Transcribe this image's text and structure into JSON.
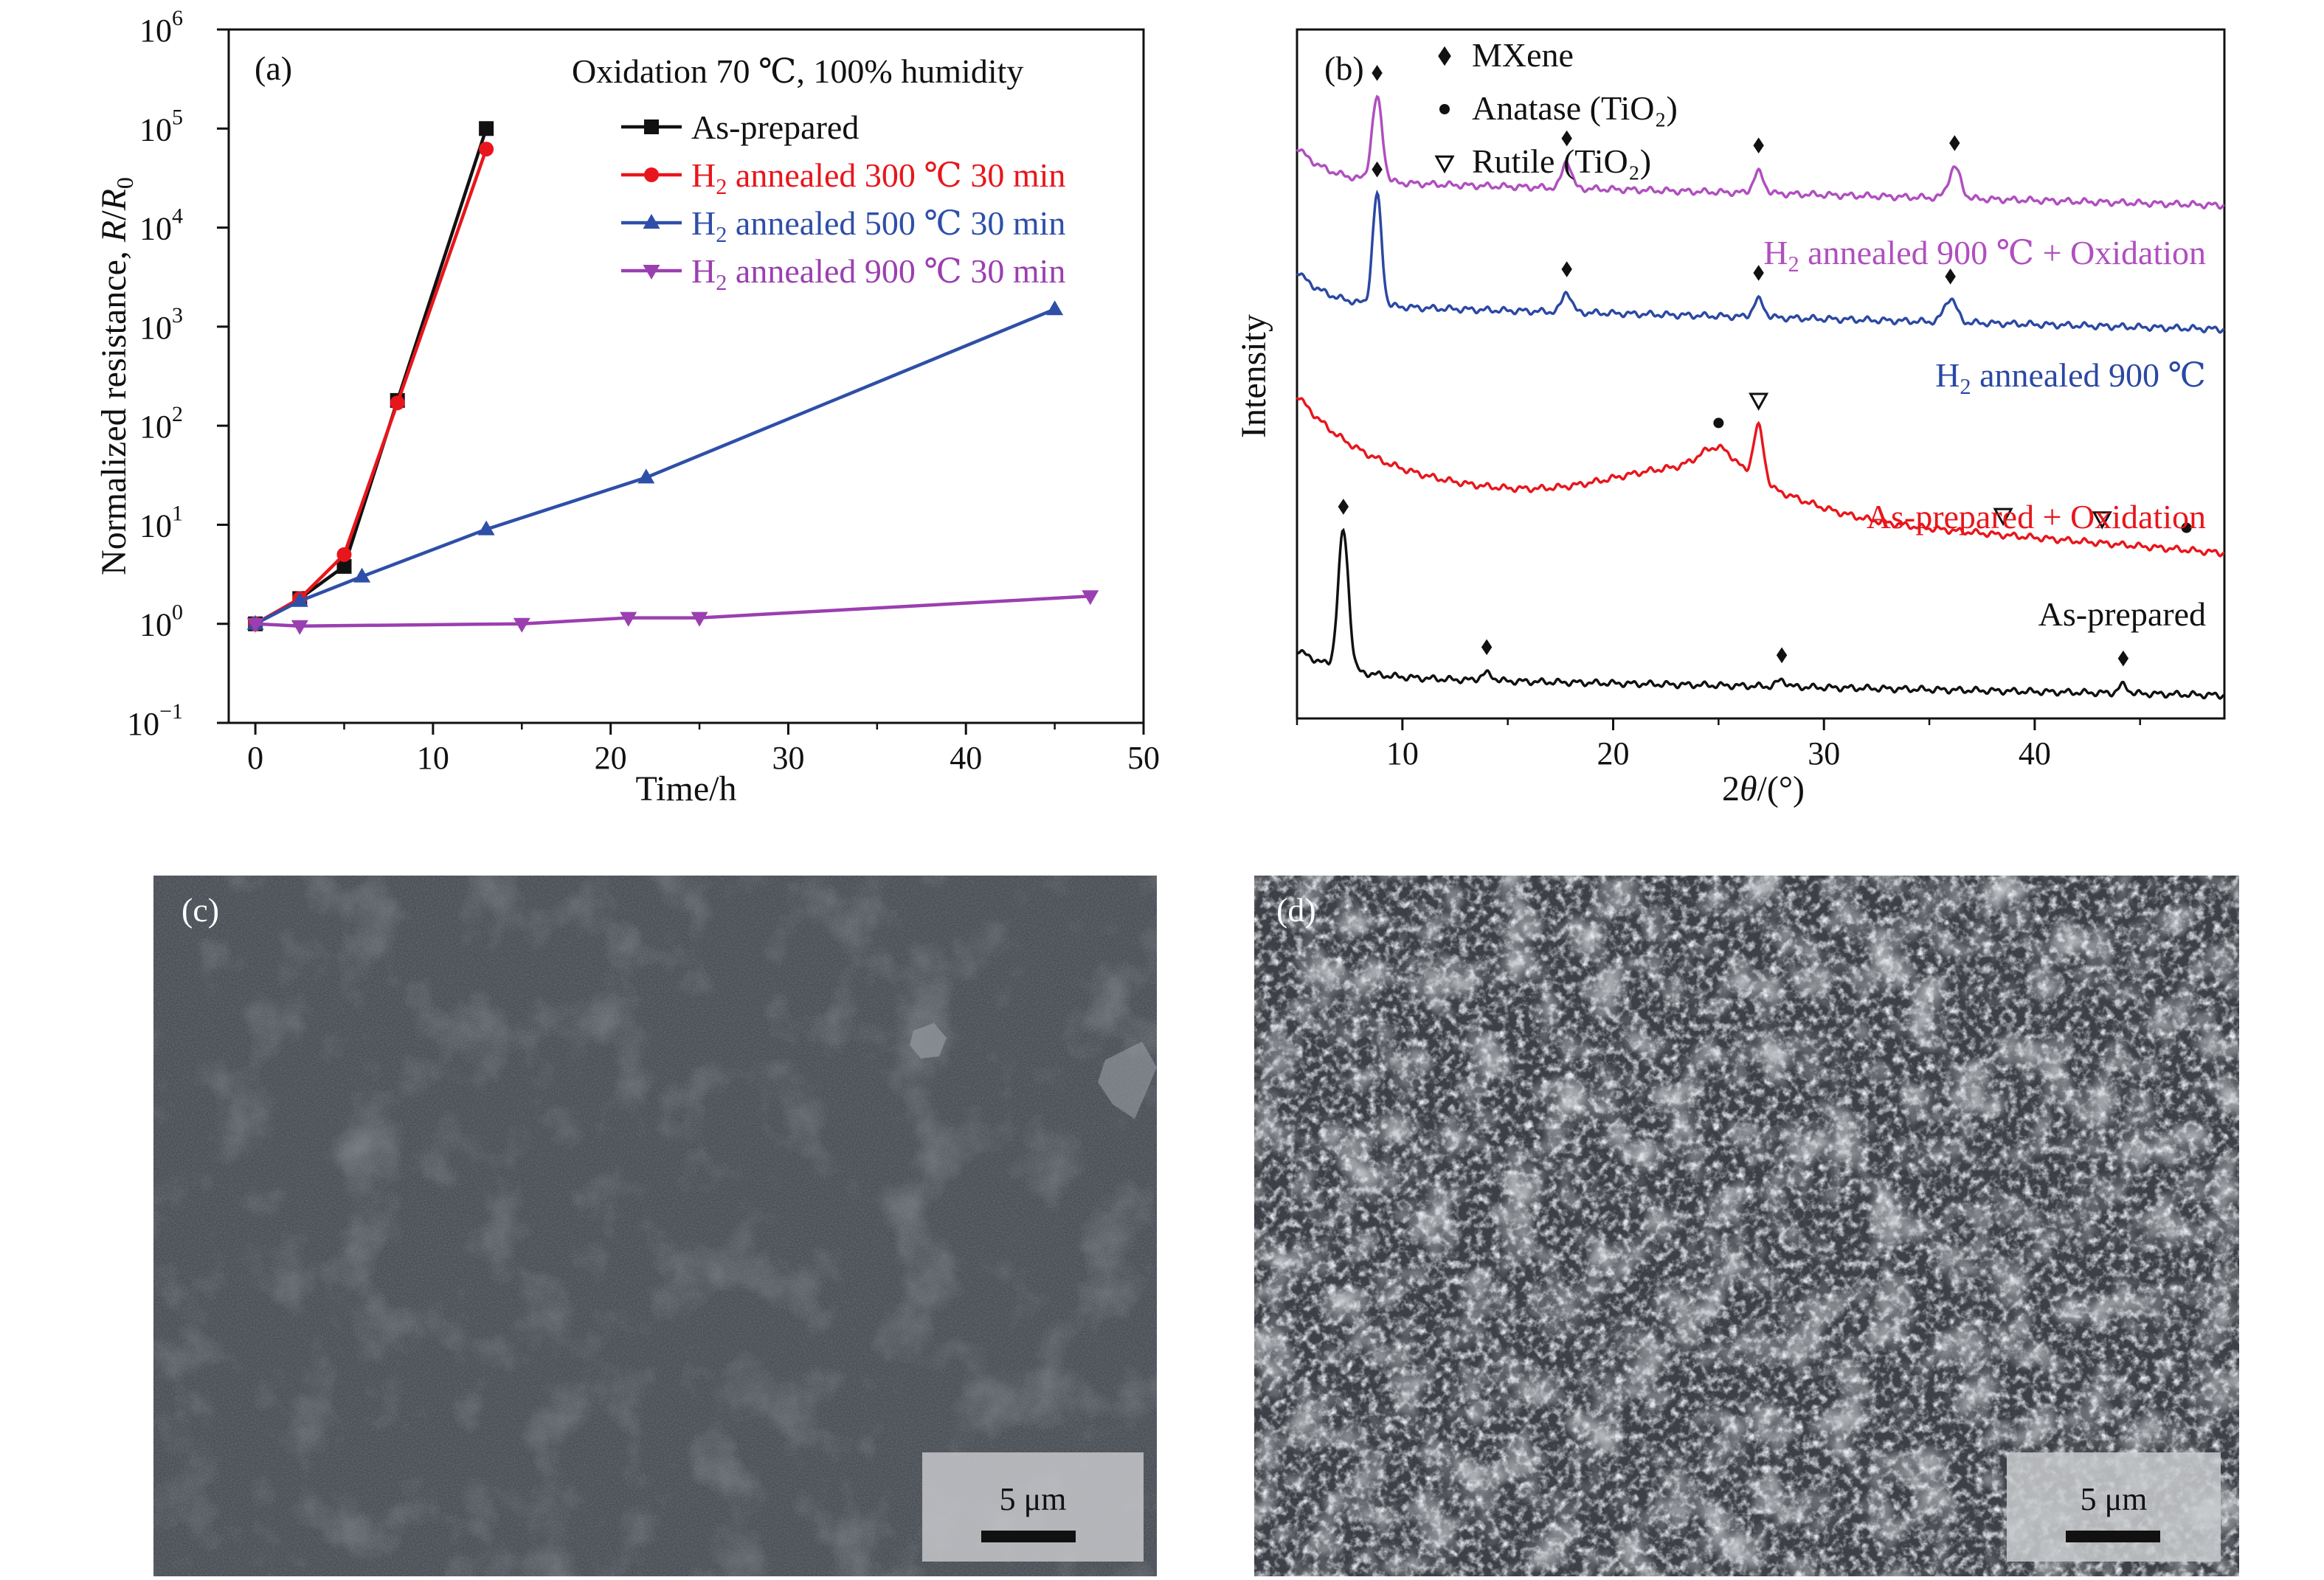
{
  "chart_data": [
    {
      "panel": "(a)",
      "type": "line",
      "title": "Oxidation 70 ℃, 100% humidity",
      "xlabel": "Time/h",
      "ylabel": "Normalized resistance, R/R0",
      "yscale": "log",
      "xlim": [
        -1.5,
        50
      ],
      "ylim": [
        0.1,
        1000000
      ],
      "x_ticks": [
        "0",
        "10",
        "20",
        "30",
        "40",
        "50"
      ],
      "x_tick_values": [
        0,
        10,
        20,
        30,
        40,
        50
      ],
      "y_tick_exponents": [
        -1,
        0,
        1,
        2,
        3,
        4,
        5,
        6
      ],
      "y_tick_base": "10",
      "legend_position": "top-right",
      "series": [
        {
          "name": "As-prepared",
          "color": "#111111",
          "marker": "square",
          "x": [
            0,
            2.5,
            5,
            8,
            13
          ],
          "y": [
            1,
            1.8,
            3.8,
            180,
            100000
          ]
        },
        {
          "name": "H2 annealed 300 ℃ 30 min",
          "legend_text": "annealed 300 ℃ 30 min",
          "color": "#e8161c",
          "marker": "circle",
          "x": [
            0,
            2.5,
            5,
            8,
            13
          ],
          "y": [
            1,
            1.8,
            5,
            170,
            62000
          ]
        },
        {
          "name": "H2 annealed 500 ℃ 30 min",
          "legend_text": "annealed 500 ℃ 30 min",
          "color": "#2e4fa8",
          "marker": "triangle-up",
          "x": [
            0,
            2.5,
            6,
            13,
            22,
            45
          ],
          "y": [
            1,
            1.7,
            3,
            9,
            30,
            1500
          ]
        },
        {
          "name": "H2 annealed 900 ℃ 30 min",
          "legend_text": "annealed 900 ℃ 30 min",
          "color": "#9b3fb0",
          "marker": "triangle-down",
          "x": [
            0,
            2.5,
            15,
            21,
            25,
            47
          ],
          "y": [
            1,
            0.95,
            1.0,
            1.15,
            1.15,
            1.9
          ]
        }
      ]
    },
    {
      "panel": "(b)",
      "type": "line",
      "xlabel": "2θ/(°)",
      "ylabel": "Intensity",
      "xlim": [
        5,
        49
      ],
      "x_ticks": [
        "10",
        "20",
        "30",
        "40"
      ],
      "x_tick_values": [
        10,
        20,
        30,
        40
      ],
      "y_ticks": "none",
      "legend_position": "top-left",
      "legend": [
        {
          "symbol": "diamond",
          "label": "MXene"
        },
        {
          "symbol": "dot",
          "label": "Anatase (TiO₂)"
        },
        {
          "symbol": "triangle-down-open",
          "label": "Rutile (TiO₂)"
        }
      ],
      "series": [
        {
          "name": "H2 annealed 900 ℃ + Oxidation",
          "label_text": "annealed 900 ℃ + Oxidation",
          "color": "#b04fbf",
          "baseline": 0.78,
          "peaks": [
            [
              8.8,
              0.12,
              0.35
            ],
            [
              17.8,
              0.04,
              0.3
            ],
            [
              26.9,
              0.03,
              0.35
            ],
            [
              36.2,
              0.045,
              0.4
            ]
          ],
          "markers": [
            {
              "x": 8.8,
              "symbol": "diamond"
            },
            {
              "x": 17.8,
              "symbol": "diamond"
            },
            {
              "x": 26.9,
              "symbol": "diamond"
            },
            {
              "x": 36.2,
              "symbol": "diamond"
            }
          ]
        },
        {
          "name": "H2 annealed 900 ℃",
          "label_text": "annealed 900 ℃",
          "color": "#2b48a3",
          "baseline": 0.6,
          "peaks": [
            [
              8.8,
              0.16,
              0.3
            ],
            [
              17.8,
              0.03,
              0.3
            ],
            [
              26.9,
              0.025,
              0.35
            ],
            [
              36.0,
              0.035,
              0.4
            ]
          ],
          "markers": [
            {
              "x": 8.8,
              "symbol": "diamond"
            },
            {
              "x": 17.8,
              "symbol": "diamond"
            },
            {
              "x": 26.9,
              "symbol": "diamond"
            },
            {
              "x": 36.0,
              "symbol": "diamond"
            }
          ]
        },
        {
          "name": "As-prepared + Oxidation",
          "color": "#e8161c",
          "baseline": 0.35,
          "peaks": [
            [
              25.0,
              0.035,
              1.2
            ],
            [
              26.9,
              0.08,
              0.35
            ]
          ],
          "markers": [
            {
              "x": 25.0,
              "symbol": "dot"
            },
            {
              "x": 26.9,
              "symbol": "triangle-down-open"
            },
            {
              "x": 38.5,
              "symbol": "triangle-down-open"
            },
            {
              "x": 43.2,
              "symbol": "triangle-down-open"
            },
            {
              "x": 47.2,
              "symbol": "dot"
            }
          ]
        },
        {
          "name": "As-prepared",
          "color": "#111111",
          "baseline": 0.06,
          "peaks": [
            [
              7.2,
              0.2,
              0.35
            ],
            [
              14.0,
              0.01,
              0.4
            ],
            [
              28.0,
              0.01,
              0.3
            ],
            [
              44.2,
              0.012,
              0.3
            ]
          ],
          "markers": [
            {
              "x": 7.2,
              "symbol": "diamond"
            },
            {
              "x": 14.0,
              "symbol": "diamond"
            },
            {
              "x": 28.0,
              "symbol": "diamond"
            },
            {
              "x": 44.2,
              "symbol": "diamond"
            }
          ]
        }
      ]
    }
  ],
  "panels": {
    "a": {
      "label": "(a)"
    },
    "b": {
      "label": "(b)"
    },
    "c": {
      "label": "(c)",
      "scalebar": "5 μm"
    },
    "d": {
      "label": "(d)",
      "scalebar": "5 μm"
    }
  },
  "text": {
    "h2_prefix": "H",
    "h2_sub": "2",
    "ylabel_main": "Normalized resistance, ",
    "ylabel_r": "R",
    "ylabel_slash": "/",
    "ylabel_r0": "R",
    "ylabel_sub0": "0",
    "xlabel_b_prefix": "2",
    "xlabel_b_theta": "θ",
    "xlabel_b_suffix": "/(°)"
  }
}
